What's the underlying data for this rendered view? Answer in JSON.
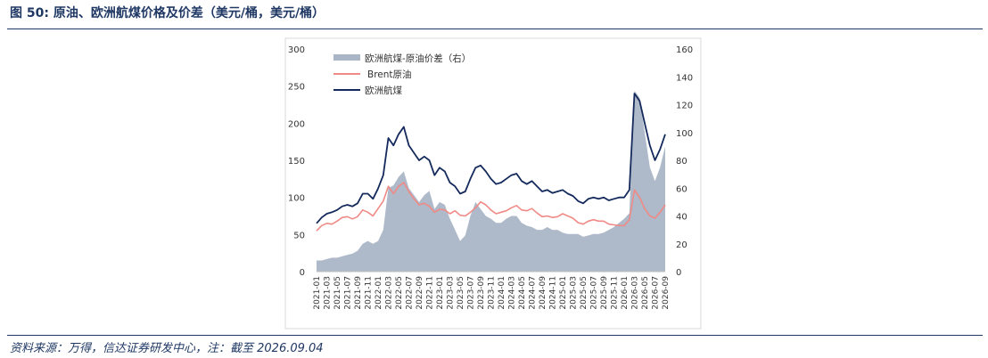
{
  "header": {
    "title": "图 50:  原油、欧洲航煤价格及价差（美元/桶，美元/桶）"
  },
  "footer": {
    "source": "资料来源：万得，信达证券研发中心，注：截至 2026.09.04"
  },
  "colors": {
    "spread": "#aab5c6",
    "brent": "#f08a86",
    "jet": "#142a5c",
    "rule": "#1f3864"
  },
  "chart_data": {
    "type": "line",
    "legend_position": "top-left",
    "grid": false,
    "series": [
      {
        "name": "欧洲航煤-原油价差（右）",
        "kind": "area",
        "axis": "right",
        "color": "#aab5c6"
      },
      {
        "name": "Brent原油",
        "kind": "line",
        "axis": "left",
        "color": "#f08a86"
      },
      {
        "name": "欧洲航煤",
        "kind": "line",
        "axis": "left",
        "color": "#142a5c"
      }
    ],
    "y_left": {
      "ylim": [
        0,
        300
      ],
      "ticks": [
        "0",
        "50",
        "100",
        "150",
        "200",
        "250",
        "300"
      ]
    },
    "y_right": {
      "ylim": [
        0,
        160
      ],
      "ticks": [
        "0",
        "20",
        "40",
        "60",
        "80",
        "100",
        "120",
        "140",
        "160"
      ]
    },
    "x": {
      "range": [
        "2021-01",
        "2026-09"
      ],
      "ticks": [
        "2021-01",
        "2021-03",
        "2021-05",
        "2021-07",
        "2021-09",
        "2021-11",
        "2022-01",
        "2022-03",
        "2022-05",
        "2022-07",
        "2022-09",
        "2022-11",
        "2023-01",
        "2023-03",
        "2023-05",
        "2023-07",
        "2023-09",
        "2023-11",
        "2024-01",
        "2024-03",
        "2024-05",
        "2024-07",
        "2024-09",
        "2024-11",
        "2025-01",
        "2025-03",
        "2025-05",
        "2025-07",
        "2025-09",
        "2025-11",
        "2026-01",
        "2026-03",
        "2026-05",
        "2026-07",
        "2026-09"
      ]
    },
    "monthly": {
      "months": [
        "2021-01",
        "2021-02",
        "2021-03",
        "2021-04",
        "2021-05",
        "2021-06",
        "2021-07",
        "2021-08",
        "2021-09",
        "2021-10",
        "2021-11",
        "2021-12",
        "2022-01",
        "2022-02",
        "2022-03",
        "2022-04",
        "2022-05",
        "2022-06",
        "2022-07",
        "2022-08",
        "2022-09",
        "2022-10",
        "2022-11",
        "2022-12",
        "2023-01",
        "2023-02",
        "2023-03",
        "2023-04",
        "2023-05",
        "2023-06",
        "2023-07",
        "2023-08",
        "2023-09",
        "2023-10",
        "2023-11",
        "2023-12",
        "2024-01",
        "2024-02",
        "2024-03",
        "2024-04",
        "2024-05",
        "2024-06",
        "2024-07",
        "2024-08",
        "2024-09",
        "2024-10",
        "2024-11",
        "2024-12",
        "2025-01",
        "2025-02",
        "2025-03",
        "2025-04",
        "2025-05",
        "2025-06",
        "2025-07",
        "2025-08",
        "2025-09",
        "2025-10",
        "2025-11",
        "2025-12",
        "2026-01",
        "2026-02",
        "2026-03",
        "2026-04",
        "2026-05",
        "2026-06",
        "2026-07",
        "2026-08",
        "2026-09"
      ],
      "brent": [
        55,
        62,
        65,
        64,
        68,
        73,
        74,
        71,
        74,
        83,
        80,
        75,
        85,
        95,
        115,
        105,
        115,
        120,
        108,
        98,
        90,
        92,
        88,
        80,
        84,
        83,
        78,
        82,
        76,
        75,
        80,
        86,
        94,
        90,
        83,
        78,
        80,
        82,
        86,
        89,
        83,
        82,
        85,
        79,
        74,
        75,
        73,
        74,
        78,
        75,
        72,
        66,
        64,
        68,
        70,
        68,
        68,
        64,
        63,
        62,
        62,
        70,
        110,
        100,
        85,
        75,
        72,
        80,
        90
      ],
      "jet": [
        65,
        73,
        78,
        80,
        83,
        88,
        90,
        88,
        92,
        105,
        105,
        98,
        112,
        130,
        180,
        170,
        185,
        195,
        170,
        160,
        150,
        155,
        150,
        130,
        140,
        135,
        120,
        115,
        105,
        108,
        125,
        140,
        143,
        135,
        125,
        118,
        120,
        125,
        130,
        132,
        122,
        118,
        122,
        115,
        108,
        110,
        106,
        108,
        110,
        105,
        102,
        95,
        92,
        98,
        100,
        98,
        100,
        96,
        98,
        100,
        100,
        110,
        240,
        230,
        200,
        170,
        150,
        165,
        185
      ],
      "spread": [
        8,
        8,
        9,
        10,
        10,
        11,
        12,
        13,
        15,
        20,
        22,
        20,
        22,
        30,
        60,
        62,
        68,
        72,
        60,
        55,
        50,
        55,
        58,
        45,
        50,
        48,
        38,
        30,
        22,
        26,
        40,
        50,
        45,
        40,
        38,
        35,
        35,
        38,
        40,
        40,
        35,
        33,
        32,
        30,
        30,
        32,
        30,
        30,
        28,
        27,
        27,
        27,
        25,
        26,
        27,
        27,
        28,
        30,
        32,
        35,
        38,
        42,
        130,
        125,
        100,
        75,
        65,
        75,
        90
      ]
    }
  }
}
